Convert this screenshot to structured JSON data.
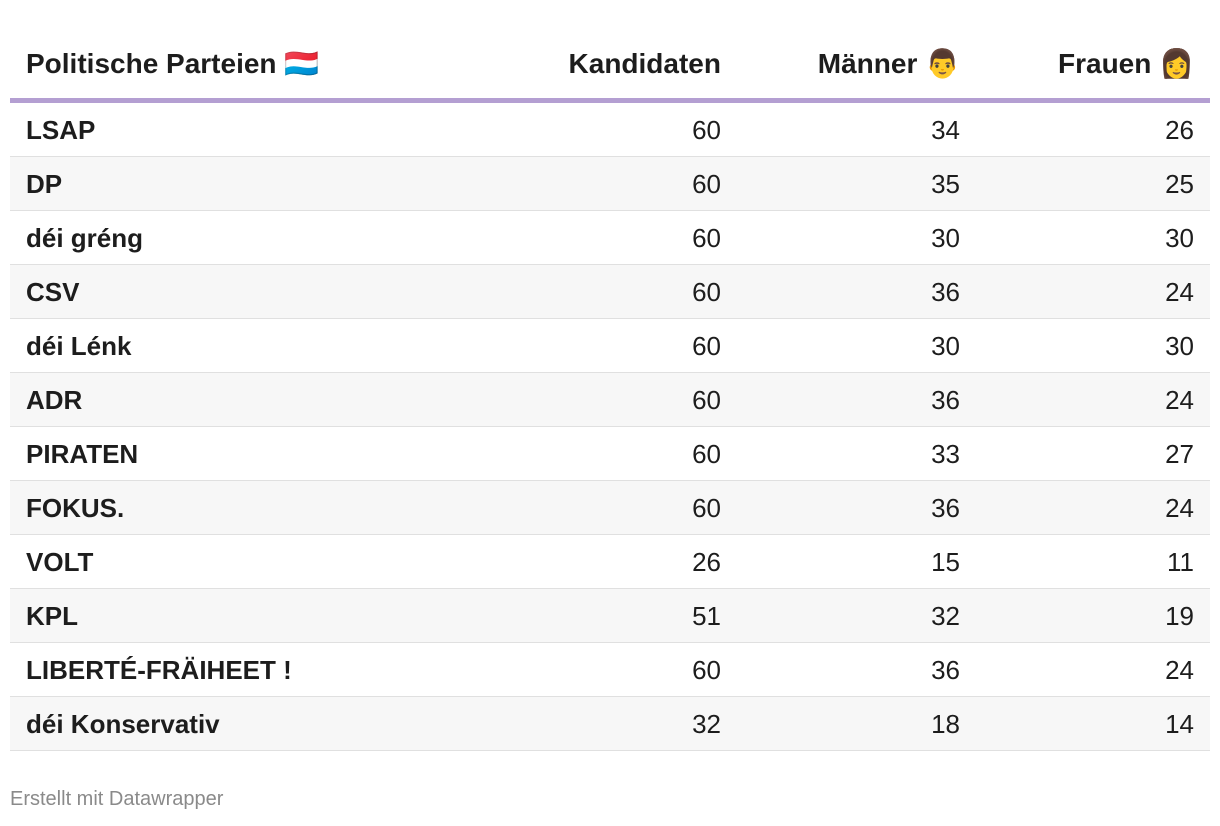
{
  "table": {
    "headers": [
      "Politische Parteien 🇱🇺",
      "Kandidaten",
      "Männer 👨",
      "Frauen 👩"
    ],
    "rows": [
      [
        "LSAP",
        60,
        34,
        26
      ],
      [
        "DP",
        60,
        35,
        25
      ],
      [
        "déi gréng",
        60,
        30,
        30
      ],
      [
        "CSV",
        60,
        36,
        24
      ],
      [
        "déi Lénk",
        60,
        30,
        30
      ],
      [
        "ADR",
        60,
        36,
        24
      ],
      [
        "PIRATEN",
        60,
        33,
        27
      ],
      [
        "FOKUS.",
        60,
        36,
        24
      ],
      [
        "VOLT",
        26,
        15,
        11
      ],
      [
        "KPL",
        51,
        32,
        19
      ],
      [
        "LIBERTÉ-FRÄIHEET !",
        60,
        36,
        24
      ],
      [
        "déi Konservativ",
        32,
        18,
        14
      ]
    ]
  },
  "footer": "Erstellt mit Datawrapper"
}
